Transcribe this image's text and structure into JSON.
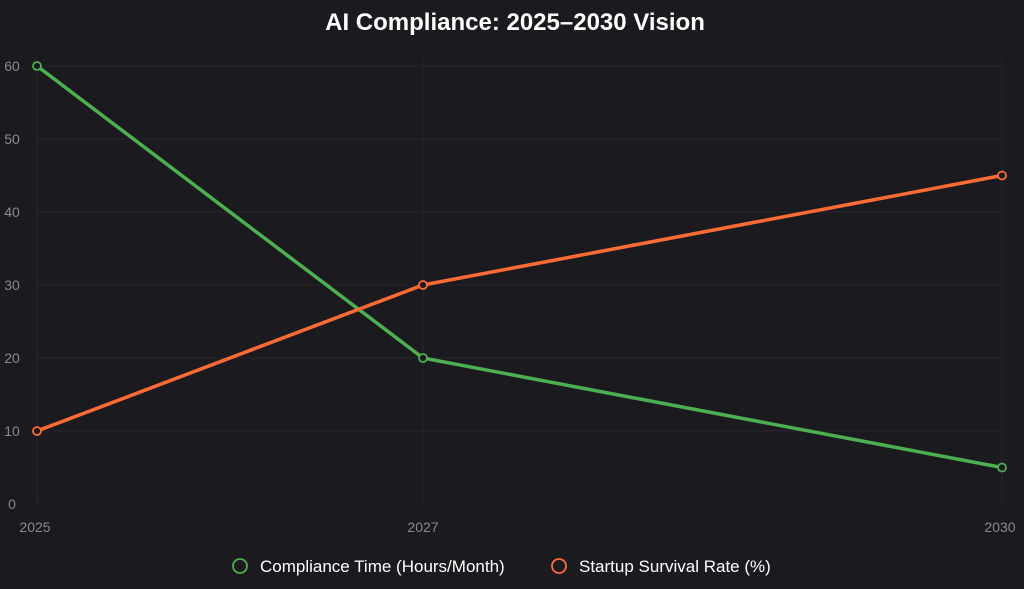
{
  "chart_data": {
    "type": "line",
    "title": "AI Compliance: 2025–2030 Vision",
    "xlabel": "",
    "ylabel": "",
    "x": [
      "2025",
      "2027",
      "2030"
    ],
    "ylim": [
      0,
      60
    ],
    "y_ticks": [
      "0",
      "10",
      "20",
      "30",
      "40",
      "50",
      "60"
    ],
    "grid": true,
    "legend_position": "bottom",
    "series": [
      {
        "name": "Compliance Time (Hours/Month)",
        "values": [
          60,
          20,
          5
        ],
        "color": "#4caf50"
      },
      {
        "name": "Startup Survival Rate (%)",
        "values": [
          10,
          30,
          45
        ],
        "color": "#ff6b35"
      }
    ]
  }
}
